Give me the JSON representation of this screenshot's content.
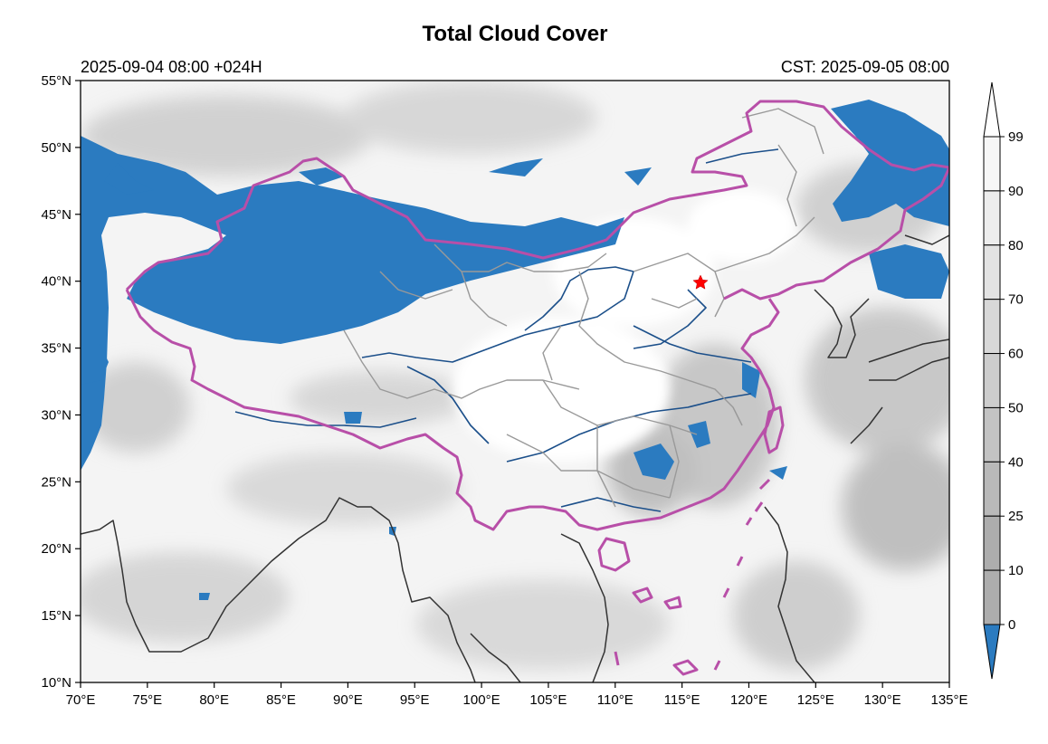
{
  "title": "Total Cloud Cover",
  "subtitle_left": "2025-09-04 08:00 +024H",
  "subtitle_right": "CST: 2025-09-05 08:00",
  "map": {
    "lon_range": [
      70,
      135
    ],
    "lat_range": [
      10,
      55
    ],
    "lon_ticks": [
      "70°E",
      "75°E",
      "80°E",
      "85°E",
      "90°E",
      "95°E",
      "100°E",
      "105°E",
      "110°E",
      "115°E",
      "120°E",
      "125°E",
      "130°E",
      "135°E"
    ],
    "lat_ticks": [
      "55°N",
      "50°N",
      "45°N",
      "40°N",
      "35°N",
      "30°N",
      "25°N",
      "20°N",
      "15°N",
      "10°N"
    ],
    "marker": {
      "symbol": "star",
      "lon": 116.4,
      "lat": 39.9,
      "color": "#ff0000"
    },
    "colors": {
      "clear_sky": "#2b7bc0",
      "china_border": "#b84fa8",
      "province_border": "#999999",
      "rivers": "#1b4f8a",
      "coastline": "#333333"
    }
  },
  "colorbar": {
    "levels": [
      "99",
      "90",
      "80",
      "70",
      "60",
      "50",
      "40",
      "25",
      "10",
      "0"
    ],
    "colors": [
      "#f7f7f7",
      "#ededed",
      "#e3e3e3",
      "#d8d8d8",
      "#cdcdcd",
      "#c3c3c3",
      "#b9b9b9",
      "#adadad",
      "#2b7bc0"
    ]
  }
}
